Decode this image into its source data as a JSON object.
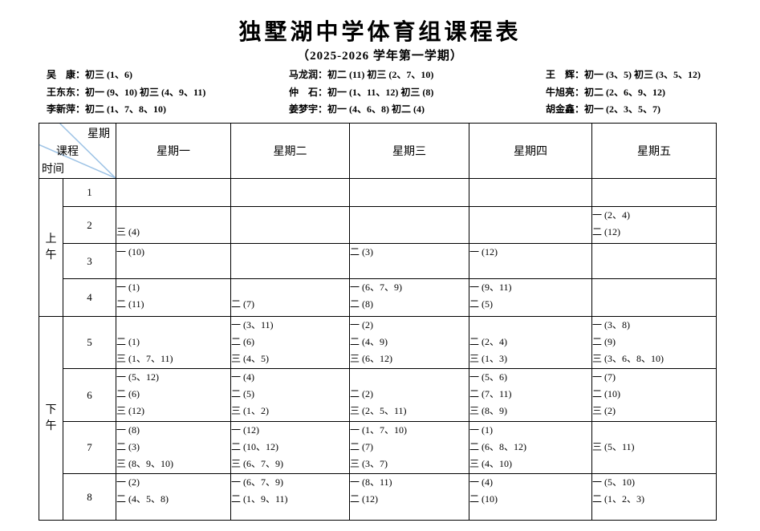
{
  "title": "独墅湖中学体育组课程表",
  "subtitle": "（2025-2026 学年第一学期）",
  "teachers": {
    "col1": [
      "吴　康：初三 (1、6)",
      "王东东：初一 (9、10) 初三 (4、9、11)",
      "李新萍：初二 (1、7、8、10)"
    ],
    "col2": [
      "马龙润：初二 (11) 初三 (2、7、10)",
      "仲　石：初一 (1、11、12) 初三 (8)",
      "姜梦宇：初一 (4、6、8) 初二 (4)"
    ],
    "col3": [
      "王　辉：初一 (3、5) 初三 (3、5、12)",
      "牛旭亮：初二 (2、6、9、12)",
      "胡金鑫：初一 (2、3、5、7)"
    ]
  },
  "corner": {
    "week": "星期",
    "course": "课程",
    "time": "时间"
  },
  "days": [
    "星期一",
    "星期二",
    "星期三",
    "星期四",
    "星期五"
  ],
  "sessions": [
    {
      "label": "上午"
    },
    {
      "label": "下午"
    }
  ],
  "timetable": [
    {
      "period": "1",
      "cells": [
        [],
        [],
        [],
        [],
        []
      ]
    },
    {
      "period": "2",
      "cells": [
        [
          "",
          "三 (4)"
        ],
        [],
        [],
        [],
        [
          "一 (2、4)",
          "二 (12)"
        ]
      ]
    },
    {
      "period": "3",
      "cells": [
        [
          "一 (10)"
        ],
        [],
        [
          "二 (3)"
        ],
        [
          "一 (12)"
        ],
        []
      ]
    },
    {
      "period": "4",
      "cells": [
        [
          "一 (1)",
          "二 (11)"
        ],
        [
          "",
          "二 (7)"
        ],
        [
          "一 (6、7、9)",
          "二 (8)"
        ],
        [
          "一 (9、11)",
          "二 (5)"
        ],
        []
      ]
    },
    {
      "period": "5",
      "cells": [
        [
          "",
          "二 (1)",
          "三 (1、7、11)"
        ],
        [
          "一 (3、11)",
          "二 (6)",
          "三 (4、5)"
        ],
        [
          "一 (2)",
          "二 (4、9)",
          "三 (6、12)"
        ],
        [
          "",
          "二 (2、4)",
          "三 (1、3)"
        ],
        [
          "一 (3、8)",
          "二 (9)",
          "三 (3、6、8、10)"
        ]
      ]
    },
    {
      "period": "6",
      "cells": [
        [
          "一 (5、12)",
          "二 (6)",
          "三 (12)"
        ],
        [
          "一 (4)",
          "二 (5)",
          "三 (1、2)"
        ],
        [
          "",
          "二 (2)",
          "三 (2、5、11)"
        ],
        [
          "一 (5、6)",
          "二 (7、11)",
          "三 (8、9)"
        ],
        [
          "一 (7)",
          "二 (10)",
          "三 (2)"
        ]
      ]
    },
    {
      "period": "7",
      "cells": [
        [
          "一 (8)",
          "二 (3)",
          "三 (8、9、10)"
        ],
        [
          "一 (12)",
          "二 (10、12)",
          "三 (6、7、9)"
        ],
        [
          "一 (1、7、10)",
          "二 (7)",
          "三 (3、7)"
        ],
        [
          "一 (1)",
          "二 (6、8、12)",
          "三 (4、10)"
        ],
        [
          "",
          "三 (5、11)"
        ]
      ]
    },
    {
      "period": "8",
      "cells": [
        [
          "一 (2)",
          "二 (4、5、8)"
        ],
        [
          "一 (6、7、9)",
          "二 (1、9、11)"
        ],
        [
          "一 (8、11)",
          "二 (12)"
        ],
        [
          "一 (4)",
          "二 (10)"
        ],
        [
          "一 (5、10)",
          "二 (1、2、3)"
        ]
      ]
    }
  ],
  "colors": {
    "diagonal_line": "#9cc2e5",
    "border": "#000000"
  }
}
